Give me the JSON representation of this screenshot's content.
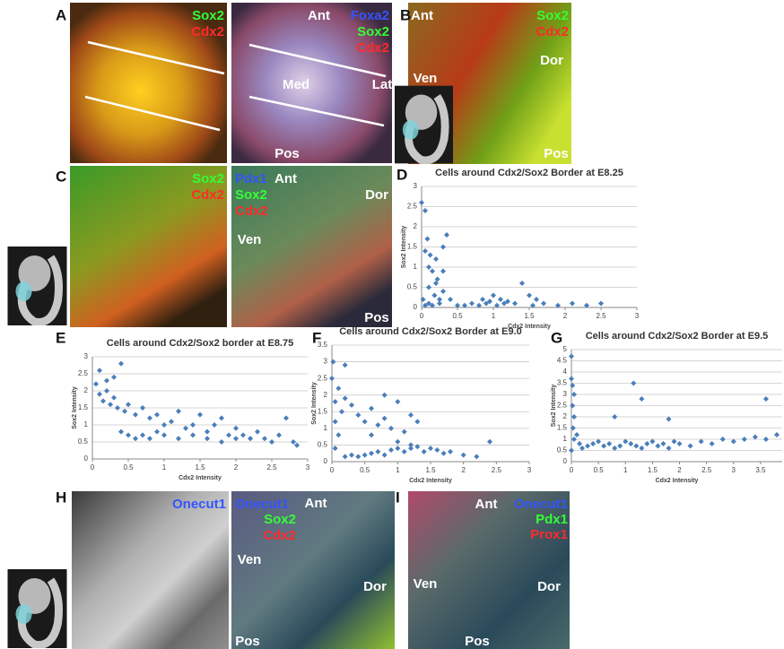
{
  "letters": [
    "A",
    "B",
    "C",
    "D",
    "E",
    "F",
    "G",
    "H",
    "I"
  ],
  "images": [
    {
      "labels": [
        {
          "text": "Sox2",
          "color": "#33ff33"
        },
        {
          "text": "Cdx2",
          "color": "#ff2a2a"
        }
      ]
    },
    {
      "labels": [
        {
          "text": "Ant",
          "color": "#ffffff"
        },
        {
          "text": "Foxa2",
          "color": "#3355ff"
        },
        {
          "text": "Sox2",
          "color": "#33ff33"
        },
        {
          "text": "Cdx2",
          "color": "#ff2a2a"
        },
        {
          "text": "Med",
          "color": "#ffffff"
        },
        {
          "text": "Lat",
          "color": "#ffffff"
        },
        {
          "text": "Pos",
          "color": "#ffffff"
        }
      ]
    },
    {
      "labels": [
        {
          "text": "Ant",
          "color": "#ffffff"
        },
        {
          "text": "Sox2",
          "color": "#33ff33"
        },
        {
          "text": "Cdx2",
          "color": "#ff2a2a"
        },
        {
          "text": "Dor",
          "color": "#ffffff"
        },
        {
          "text": "Ven",
          "color": "#ffffff"
        },
        {
          "text": "Pos",
          "color": "#ffffff"
        }
      ]
    },
    {
      "labels": [
        {
          "text": "Sox2",
          "color": "#33ff33"
        },
        {
          "text": "Cdx2",
          "color": "#ff2a2a"
        }
      ]
    },
    {
      "labels": [
        {
          "text": "Pdx1",
          "color": "#3355ff"
        },
        {
          "text": "Sox2",
          "color": "#33ff33"
        },
        {
          "text": "Cdx2",
          "color": "#ff2a2a"
        },
        {
          "text": "Ant",
          "color": "#ffffff"
        },
        {
          "text": "Dor",
          "color": "#ffffff"
        },
        {
          "text": "Ven",
          "color": "#ffffff"
        },
        {
          "text": "Pos",
          "color": "#ffffff"
        }
      ]
    },
    {
      "labels": [
        {
          "text": "Onecut1",
          "color": "#3355ff"
        }
      ]
    },
    {
      "labels": [
        {
          "text": "Onecut1",
          "color": "#3355ff"
        },
        {
          "text": "Ant",
          "color": "#ffffff"
        },
        {
          "text": "Sox2",
          "color": "#33ff33"
        },
        {
          "text": "Cdx2",
          "color": "#ff2a2a"
        },
        {
          "text": "Ven",
          "color": "#ffffff"
        },
        {
          "text": "Dor",
          "color": "#ffffff"
        },
        {
          "text": "Pos",
          "color": "#ffffff"
        }
      ]
    },
    {
      "labels": [
        {
          "text": "Ant",
          "color": "#ffffff"
        },
        {
          "text": "Onecut1",
          "color": "#3355ff"
        },
        {
          "text": "Pdx1",
          "color": "#33ff33"
        },
        {
          "text": "Prox1",
          "color": "#ff2a2a"
        },
        {
          "text": "Ven",
          "color": "#ffffff"
        },
        {
          "text": "Dor",
          "color": "#ffffff"
        },
        {
          "text": "Pos",
          "color": "#ffffff"
        }
      ]
    }
  ],
  "chart_data": [
    {
      "type": "scatter",
      "title": "Cells around Cdx2/Sox2 Border at E8.25",
      "x_label": "Cdx2 Intensity",
      "y_label": "Sox2 Intensity",
      "color": "#4a7ebb",
      "grid": true,
      "xlim": [
        0,
        3
      ],
      "xticks": [
        0,
        0.5,
        1,
        1.5,
        2,
        2.5,
        3
      ],
      "ylim": [
        0,
        3
      ],
      "yticks": [
        0,
        0.5,
        1,
        1.5,
        2,
        2.5,
        3
      ],
      "x": [
        0,
        0.02,
        0.05,
        0.05,
        0.08,
        0.1,
        0.1,
        0.12,
        0.15,
        0.18,
        0.2,
        0.22,
        0.25,
        0.3,
        0.3,
        0.35,
        0.4,
        0.05,
        0.1,
        0.15,
        0.2,
        0.25,
        0.3,
        0.8,
        0.85,
        0.9,
        0.95,
        1.0,
        1.05,
        1.1,
        1.15,
        1.2,
        1.3,
        1.4,
        1.5,
        1.55,
        1.6,
        1.7,
        1.9,
        2.1,
        2.3,
        2.5,
        0.5,
        0.6,
        0.7
      ],
      "values": [
        2.6,
        0.2,
        2.4,
        1.4,
        1.7,
        1.0,
        0.5,
        1.3,
        0.9,
        0.3,
        1.2,
        0.7,
        0.1,
        1.5,
        0.4,
        1.8,
        0.2,
        0.05,
        0.1,
        0.05,
        0.6,
        0.2,
        0.9,
        0.05,
        0.2,
        0.1,
        0.15,
        0.3,
        0.05,
        0.2,
        0.1,
        0.15,
        0.1,
        0.6,
        0.3,
        0.05,
        0.2,
        0.1,
        0.05,
        0.1,
        0.05,
        0.1,
        0.05,
        0.05,
        0.1
      ]
    },
    {
      "type": "scatter",
      "title": "Cells around Cdx2/Sox2 border at E8.75",
      "x_label": "Cdx2 Intensity",
      "y_label": "Sox2 Intensity",
      "color": "#4a7ebb",
      "grid": true,
      "xlim": [
        0,
        3
      ],
      "xticks": [
        0,
        0.5,
        1,
        1.5,
        2,
        2.5,
        3
      ],
      "ylim": [
        0,
        3
      ],
      "yticks": [
        0,
        0.5,
        1,
        1.5,
        2,
        2.5,
        3
      ],
      "x": [
        0.05,
        0.1,
        0.15,
        0.2,
        0.25,
        0.3,
        0.35,
        0.4,
        0.45,
        0.5,
        0.6,
        0.7,
        0.8,
        0.9,
        1.0,
        1.1,
        1.2,
        1.3,
        1.4,
        1.5,
        1.6,
        1.7,
        1.8,
        1.9,
        2.0,
        2.1,
        2.2,
        2.3,
        2.4,
        2.5,
        2.6,
        2.8,
        0.4,
        0.5,
        0.6,
        0.7,
        0.8,
        0.9,
        1.0,
        1.2,
        1.4,
        1.6,
        1.8,
        2.0,
        2.2,
        0.1,
        0.2,
        0.3,
        2.7,
        2.85
      ],
      "values": [
        2.2,
        1.9,
        1.7,
        2.0,
        1.6,
        1.8,
        1.5,
        2.8,
        1.4,
        1.6,
        1.3,
        1.5,
        1.2,
        1.3,
        1.0,
        1.1,
        1.4,
        0.9,
        1.0,
        1.3,
        0.8,
        1.0,
        1.2,
        0.7,
        0.9,
        0.7,
        0.6,
        0.8,
        0.6,
        0.5,
        0.7,
        0.5,
        0.8,
        0.7,
        0.6,
        0.7,
        0.6,
        0.8,
        0.7,
        0.6,
        0.7,
        0.6,
        0.5,
        0.6,
        0.6,
        2.6,
        2.3,
        2.4,
        1.2,
        0.4
      ]
    },
    {
      "type": "scatter",
      "title": "Cells around Cdx2/Sox2 Border at E9.0",
      "x_label": "Cdx2 Intensity",
      "y_label": "Sox2 Intensity",
      "color": "#4a7ebb",
      "grid": true,
      "xlim": [
        0,
        3
      ],
      "xticks": [
        0,
        0.5,
        1,
        1.5,
        2,
        2.5,
        3
      ],
      "ylim": [
        0,
        3.5
      ],
      "yticks": [
        0,
        0.5,
        1,
        1.5,
        2,
        2.5,
        3,
        3.5
      ],
      "x": [
        0,
        0.02,
        0.05,
        0.05,
        0.1,
        0.1,
        0.15,
        0.2,
        0.3,
        0.4,
        0.5,
        0.6,
        0.7,
        0.8,
        0.9,
        1.0,
        1.1,
        1.2,
        1.3,
        0.2,
        0.3,
        0.4,
        0.5,
        0.6,
        0.7,
        0.8,
        0.9,
        1.0,
        1.1,
        1.2,
        1.3,
        1.4,
        1.5,
        1.6,
        1.7,
        1.8,
        2.0,
        2.2,
        2.4,
        0.2,
        0.8,
        1.0,
        1.2,
        0.05,
        0.6
      ],
      "values": [
        2.5,
        3.0,
        1.8,
        1.2,
        2.2,
        0.8,
        1.5,
        2.9,
        1.7,
        1.4,
        1.2,
        1.6,
        1.1,
        1.3,
        1.0,
        1.8,
        0.9,
        1.4,
        1.2,
        0.15,
        0.2,
        0.15,
        0.2,
        0.25,
        0.3,
        0.2,
        0.35,
        0.4,
        0.3,
        0.4,
        0.45,
        0.3,
        0.4,
        0.35,
        0.25,
        0.3,
        0.2,
        0.15,
        0.6,
        1.9,
        2.0,
        0.6,
        0.5,
        0.4,
        0.8
      ]
    },
    {
      "type": "scatter",
      "title": "Cells around Cdx2/Sox2 Border at E9.5",
      "x_label": "Cdx2 Intensity",
      "y_label": "Sox2 Intensity",
      "color": "#4a7ebb",
      "grid": true,
      "xlim": [
        0,
        3.9
      ],
      "xticks": [
        0,
        0.5,
        1,
        1.5,
        2,
        2.5,
        3,
        3.5
      ],
      "ylim": [
        0,
        5
      ],
      "yticks": [
        0,
        0.5,
        1,
        1.5,
        2,
        2.5,
        3,
        3.5,
        4,
        4.5,
        5
      ],
      "x": [
        0,
        0,
        0,
        0.02,
        0.03,
        0.05,
        0.05,
        0.1,
        0.15,
        0.2,
        0.3,
        0.4,
        0.5,
        0.6,
        0.7,
        0.8,
        0.9,
        1.0,
        1.1,
        1.2,
        1.3,
        1.4,
        1.5,
        1.6,
        1.7,
        1.8,
        1.9,
        2.0,
        2.2,
        2.4,
        2.6,
        2.8,
        3.0,
        3.2,
        3.4,
        3.6,
        3.8,
        0.8,
        1.15,
        1.3,
        1.8,
        3.6,
        0.05,
        0.02
      ],
      "values": [
        4.7,
        3.7,
        0.5,
        2.5,
        1.5,
        3.0,
        1.0,
        1.2,
        0.8,
        0.6,
        0.7,
        0.8,
        0.9,
        0.7,
        0.8,
        0.6,
        0.7,
        0.9,
        0.8,
        0.7,
        0.6,
        0.8,
        0.9,
        0.7,
        0.8,
        0.6,
        0.9,
        0.8,
        0.7,
        0.9,
        0.8,
        1.0,
        0.9,
        1.0,
        1.1,
        1.0,
        1.2,
        2.0,
        3.5,
        2.8,
        1.9,
        2.8,
        2.0,
        3.4
      ]
    }
  ]
}
